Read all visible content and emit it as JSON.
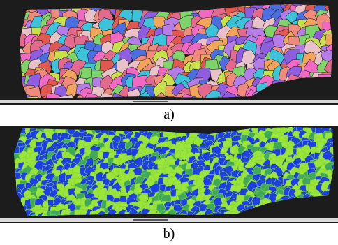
{
  "figure": {
    "panels": [
      {
        "label": "a)"
      },
      {
        "label": "b)"
      }
    ]
  },
  "colors": {
    "background_dark": "#1c1c1c",
    "scale_bar_strip": "#d8d8d8",
    "ipf_palette": [
      "#e0584f",
      "#f08a7a",
      "#8f5de0",
      "#4b6fe0",
      "#3cc3d9",
      "#c9e04a",
      "#e8c2c8",
      "#f06ac3",
      "#7ed36a",
      "#f2a45a",
      "#b67de8",
      "#e36a8c"
    ],
    "kam_low": "#1f3fe6",
    "kam_mid": "#3fa85a",
    "kam_high": "#9be53a"
  }
}
